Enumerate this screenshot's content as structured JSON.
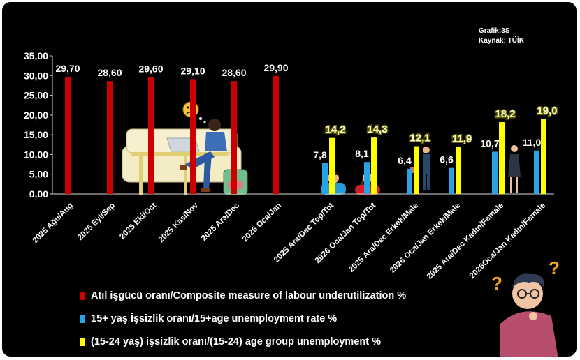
{
  "source": {
    "graphic_id": "Grafik:3S",
    "source_label": "Kaynak: TÜİK"
  },
  "colors": {
    "red": "#cc0000",
    "blue": "#29a3e6",
    "yellow": "#ffff00"
  },
  "chart_data": {
    "type": "bar",
    "ylim": [
      0,
      35
    ],
    "yticks": [
      "0,00",
      "5,00",
      "10,00",
      "15,00",
      "20,00",
      "25,00",
      "30,00",
      "35,00"
    ],
    "categories": [
      "2025 Ağu/Aug",
      "2025 Eyl/Sep",
      "2025 Eki/Oct",
      "2025 Kas/Nov",
      "2025 Ara/Dec",
      "2026 Oca/Jan",
      "2025 Ara/Dec Top/Tot",
      "2026 Oca/Jan Top/Tot",
      "2025 Ara/Dec  Erkek/Male",
      "2026 Oca/Jan Erkek/Male",
      "2025 Ara/Dec Kadın/Female",
      "2026Oca/Jan Kadın/Female"
    ],
    "series": [
      {
        "name": "Atıl işgücü oranı/Composite measure of labour underutilization %",
        "color": "#cc0000",
        "values": [
          29.7,
          28.6,
          29.6,
          29.1,
          28.6,
          29.9,
          null,
          null,
          null,
          null,
          null,
          null
        ],
        "labels": [
          "29,70",
          "28,60",
          "29,60",
          "29,10",
          "28,60",
          "29,90",
          "",
          "",
          "",
          "",
          "",
          ""
        ]
      },
      {
        "name": "15+ yaş İşsizlik oranı/15+age unemployment rate %",
        "color": "#29a3e6",
        "values": [
          null,
          null,
          null,
          null,
          null,
          null,
          7.8,
          8.1,
          6.4,
          6.6,
          10.7,
          11.0
        ],
        "labels": [
          "",
          "",
          "",
          "",
          "",
          "",
          "7,8",
          "8,1",
          "6,4",
          "6,6",
          "10,7",
          "11,0"
        ]
      },
      {
        "name": " (15-24 yaş) işsizlik oranı/(15-24) age group unemployment %",
        "color": "#ffff00",
        "values": [
          null,
          null,
          null,
          null,
          null,
          null,
          14.2,
          14.3,
          12.1,
          11.9,
          18.2,
          19.0
        ],
        "labels": [
          "",
          "",
          "",
          "",
          "",
          "",
          "14,2",
          "14,3",
          "12,1",
          "11,9",
          "18,2",
          "19,0"
        ]
      }
    ],
    "legend_position": "bottom-left"
  }
}
